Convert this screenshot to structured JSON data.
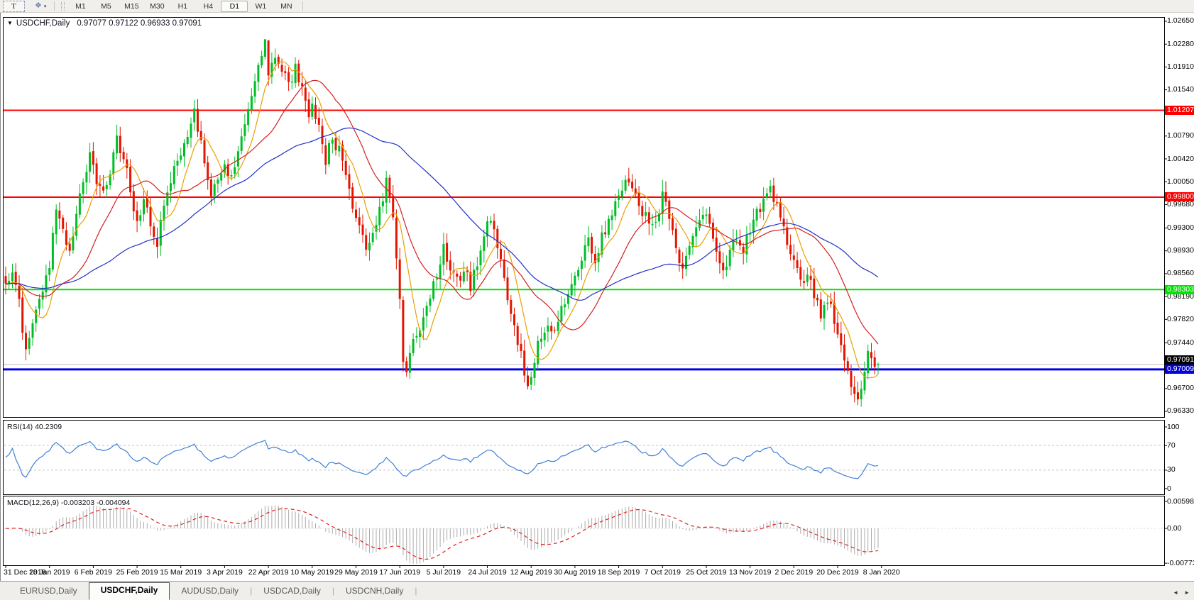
{
  "toolbar": {
    "text_tool_glyph": "T",
    "style_tool_glyph": "❖",
    "style_tool_caret": "▾",
    "timeframes": [
      "M1",
      "M5",
      "M15",
      "M30",
      "H1",
      "H4",
      "D1",
      "W1",
      "MN"
    ],
    "active_timeframe": "D1"
  },
  "header": {
    "symbol": "USDCHF,Daily",
    "ohlc": "0.97077 0.97122 0.96933 0.97091",
    "dropdown_icon": "▼"
  },
  "tabs": [
    {
      "label": "EURUSD,Daily",
      "active": false
    },
    {
      "label": "USDCHF,Daily",
      "active": true
    },
    {
      "label": "AUDUSD,Daily",
      "active": false
    },
    {
      "label": "USDCAD,Daily",
      "active": false
    },
    {
      "label": "USDCNH,Daily",
      "active": false
    }
  ],
  "chart_data": {
    "type": "candlestick",
    "symbol": "USDCHF",
    "timeframe": "Daily",
    "bars": 260,
    "last_bar": {
      "open": 0.97077,
      "high": 0.97122,
      "low": 0.96933,
      "close": 0.97091
    },
    "up_color": "#00BE26",
    "down_color": "#E41400",
    "price_axis": {
      "top": 1.02707,
      "bottom": 0.96238,
      "tick_labels": [
        "1.02650",
        "1.02280",
        "1.01910",
        "1.01540",
        "1.00790",
        "1.00420",
        "1.00050",
        "0.99680",
        "0.99300",
        "0.98930",
        "0.98560",
        "0.98190",
        "0.97820",
        "0.97440",
        "0.96700",
        "0.96330"
      ]
    },
    "dates": [
      "31 Dec 2018",
      "18 Jan 2019",
      "6 Feb 2019",
      "25 Feb 2019",
      "15 Mar 2019",
      "3 Apr 2019",
      "22 Apr 2019",
      "10 May 2019",
      "29 May 2019",
      "17 Jun 2019",
      "5 Jul 2019",
      "24 Jul 2019",
      "12 Aug 2019",
      "30 Aug 2019",
      "18 Sep 2019",
      "7 Oct 2019",
      "25 Oct 2019",
      "13 Nov 2019",
      "2 Dec 2019",
      "20 Dec 2019",
      "8 Jan 2020"
    ],
    "hlines": [
      {
        "price": 1.01207,
        "label": "1.01207",
        "color": "#FF0000",
        "width": 2
      },
      {
        "price": 0.998,
        "label": "0.99800",
        "color": "#FF0000",
        "width": 2
      },
      {
        "price": 0.98303,
        "label": "0.98303",
        "color": "#00E400",
        "width": 2
      },
      {
        "price": 0.97009,
        "label": "0.97009",
        "color": "#0000E0",
        "width": 3
      }
    ],
    "current_price_line": {
      "price": 0.97091,
      "label": "0.97091",
      "line_color": "#BDBDBD",
      "label_bg": "#000000"
    },
    "moving_averages": [
      {
        "period": 8,
        "color": "#E8A000"
      },
      {
        "period": 21,
        "color": "#D42020"
      },
      {
        "period": 55,
        "color": "#2030C8"
      }
    ],
    "close_path_anchors": [
      [
        0,
        0.984
      ],
      [
        2,
        0.9856
      ],
      [
        4,
        0.9805
      ],
      [
        6,
        0.9732
      ],
      [
        8,
        0.9775
      ],
      [
        11,
        0.983
      ],
      [
        13,
        0.9872
      ],
      [
        15,
        0.9952
      ],
      [
        17,
        0.9922
      ],
      [
        19,
        0.9896
      ],
      [
        21,
        0.9945
      ],
      [
        23,
        1.0008
      ],
      [
        25,
        1.0042
      ],
      [
        27,
        1.0002
      ],
      [
        29,
        0.9986
      ],
      [
        31,
        1.0022
      ],
      [
        33,
        1.008
      ],
      [
        35,
        1.0042
      ],
      [
        37,
        0.9992
      ],
      [
        39,
        0.9938
      ],
      [
        41,
        0.997
      ],
      [
        43,
        0.9936
      ],
      [
        45,
        0.991
      ],
      [
        47,
        0.9958
      ],
      [
        49,
        1.0008
      ],
      [
        51,
        1.004
      ],
      [
        53,
        1.0072
      ],
      [
        56,
        1.012
      ],
      [
        58,
        1.007
      ],
      [
        61,
        0.999
      ],
      [
        63,
        1.0002
      ],
      [
        65,
        1.003
      ],
      [
        67,
        1.0012
      ],
      [
        69,
        1.0052
      ],
      [
        71,
        1.0095
      ],
      [
        73,
        1.015
      ],
      [
        75,
        1.0205
      ],
      [
        77,
        1.0228
      ],
      [
        78,
        1.0185
      ],
      [
        80,
        1.0208
      ],
      [
        82,
        1.0192
      ],
      [
        84,
        1.0162
      ],
      [
        86,
        1.0192
      ],
      [
        88,
        1.015
      ],
      [
        90,
        1.0112
      ],
      [
        91,
        1.0132
      ],
      [
        93,
        1.0088
      ],
      [
        95,
        1.0042
      ],
      [
        97,
        1.0078
      ],
      [
        99,
        1.0052
      ],
      [
        101,
        1.0008
      ],
      [
        103,
        0.9968
      ],
      [
        105,
        0.994
      ],
      [
        107,
        0.9902
      ],
      [
        109,
        0.9928
      ],
      [
        111,
        0.9962
      ],
      [
        113,
        1.0002
      ],
      [
        115,
        0.9942
      ],
      [
        116,
        0.988
      ],
      [
        117,
        0.982
      ],
      [
        118,
        0.9722
      ],
      [
        119,
        0.97
      ],
      [
        121,
        0.9748
      ],
      [
        123,
        0.9772
      ],
      [
        125,
        0.98
      ],
      [
        127,
        0.984
      ],
      [
        129,
        0.9868
      ],
      [
        130,
        0.9895
      ],
      [
        132,
        0.987
      ],
      [
        134,
        0.9842
      ],
      [
        136,
        0.9865
      ],
      [
        138,
        0.9838
      ],
      [
        140,
        0.9878
      ],
      [
        142,
        0.992
      ],
      [
        144,
        0.995
      ],
      [
        146,
        0.9905
      ],
      [
        148,
        0.9845
      ],
      [
        150,
        0.98
      ],
      [
        152,
        0.9742
      ],
      [
        154,
        0.97
      ],
      [
        155,
        0.9672
      ],
      [
        157,
        0.972
      ],
      [
        159,
        0.9756
      ],
      [
        161,
        0.978
      ],
      [
        163,
        0.9762
      ],
      [
        165,
        0.98
      ],
      [
        167,
        0.983
      ],
      [
        169,
        0.9856
      ],
      [
        171,
        0.988
      ],
      [
        173,
        0.9906
      ],
      [
        175,
        0.9882
      ],
      [
        177,
        0.9912
      ],
      [
        179,
        0.994
      ],
      [
        181,
        0.9966
      ],
      [
        183,
        0.9992
      ],
      [
        184,
        1.0015
      ],
      [
        186,
        0.9996
      ],
      [
        188,
        0.9972
      ],
      [
        190,
        0.9948
      ],
      [
        192,
        0.993
      ],
      [
        194,
        0.9962
      ],
      [
        195,
        0.9982
      ],
      [
        197,
        0.9942
      ],
      [
        199,
        0.9892
      ],
      [
        201,
        0.9862
      ],
      [
        203,
        0.9906
      ],
      [
        205,
        0.9936
      ],
      [
        207,
        0.9962
      ],
      [
        209,
        0.993
      ],
      [
        211,
        0.99
      ],
      [
        213,
        0.9862
      ],
      [
        215,
        0.9892
      ],
      [
        217,
        0.9922
      ],
      [
        219,
        0.9896
      ],
      [
        221,
        0.993
      ],
      [
        223,
        0.9952
      ],
      [
        225,
        0.9978
      ],
      [
        227,
        1.0002
      ],
      [
        229,
        0.996
      ],
      [
        231,
        0.9926
      ],
      [
        233,
        0.9892
      ],
      [
        234,
        0.9872
      ],
      [
        236,
        0.9842
      ],
      [
        238,
        0.9856
      ],
      [
        240,
        0.9822
      ],
      [
        242,
        0.9792
      ],
      [
        244,
        0.9812
      ],
      [
        246,
        0.9782
      ],
      [
        247,
        0.9756
      ],
      [
        248,
        0.974
      ],
      [
        249,
        0.9718
      ],
      [
        250,
        0.97
      ],
      [
        251,
        0.9672
      ],
      [
        252,
        0.966
      ],
      [
        253,
        0.965
      ],
      [
        254,
        0.9672
      ],
      [
        255,
        0.97
      ],
      [
        256,
        0.973
      ],
      [
        257,
        0.9718
      ],
      [
        258,
        0.9708
      ],
      [
        259,
        0.9709
      ]
    ],
    "rsi": {
      "title": "RSI(14) 40.2309",
      "period": 14,
      "current": 40.2309,
      "axis_labels": [
        "100",
        "70",
        "30",
        "0"
      ],
      "levels": [
        70,
        30
      ],
      "range": [
        0,
        100
      ],
      "color": "#4080D8"
    },
    "macd": {
      "title": "MACD(12,26,9) -0.003203 -0.004094",
      "fast": 12,
      "slow": 26,
      "signal": 9,
      "current_main": -0.003203,
      "current_signal": -0.004094,
      "axis_labels": [
        "0.005986",
        "0.00",
        "-0.007733"
      ],
      "histogram_color": "#ABABAB",
      "signal_color": "#E02020"
    }
  }
}
